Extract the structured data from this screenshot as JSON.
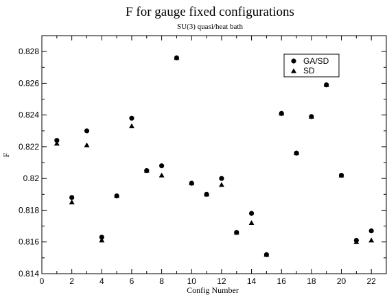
{
  "chart_data": {
    "type": "scatter",
    "title": "F for gauge fixed configurations",
    "subtitle": "SU(3) quasi/heat bath",
    "xlabel": "Config Number",
    "ylabel": "F",
    "xlim": [
      0,
      23
    ],
    "ylim": [
      0.814,
      0.829
    ],
    "xticks": [
      0,
      2,
      4,
      6,
      8,
      10,
      12,
      14,
      16,
      18,
      20,
      22
    ],
    "yticks": [
      0.814,
      0.816,
      0.818,
      0.82,
      0.822,
      0.824,
      0.826,
      0.828
    ],
    "ytick_labels": [
      "0.814",
      "0.816",
      "0.818",
      "0.82",
      "0.822",
      "0.824",
      "0.826",
      "0.828"
    ],
    "grid": false,
    "legend_position": "top-right",
    "x": [
      1,
      2,
      3,
      4,
      5,
      6,
      7,
      8,
      9,
      10,
      11,
      12,
      13,
      14,
      15,
      16,
      17,
      18,
      19,
      20,
      21,
      22
    ],
    "series": [
      {
        "name": "GA/SD",
        "marker": "circle",
        "color": "#000000",
        "values": [
          0.8224,
          0.8188,
          0.823,
          0.8163,
          0.8189,
          0.8238,
          0.8205,
          0.8208,
          0.8276,
          0.8197,
          0.819,
          0.82,
          0.8166,
          0.8178,
          0.8152,
          0.8241,
          0.8216,
          0.8239,
          0.8259,
          0.8202,
          0.8161,
          0.8167
        ]
      },
      {
        "name": "SD",
        "marker": "triangle",
        "color": "#000000",
        "values": [
          0.8222,
          0.8185,
          0.8221,
          0.8161,
          0.8189,
          0.8233,
          0.8205,
          0.8202,
          0.8276,
          0.8197,
          0.819,
          0.8196,
          0.8166,
          0.8172,
          0.8152,
          0.8241,
          0.8216,
          0.8239,
          0.8259,
          0.8202,
          0.816,
          0.8161
        ]
      }
    ]
  }
}
